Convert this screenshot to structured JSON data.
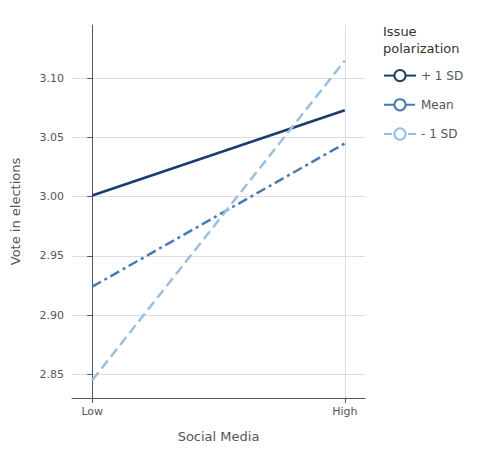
{
  "chart_data": {
    "type": "line",
    "x": [
      0,
      1
    ],
    "xlim": [
      -0.08,
      1.08
    ],
    "xticks": [
      {
        "value": 0,
        "label": "Low"
      },
      {
        "value": 1,
        "label": "High"
      }
    ],
    "ylim": [
      2.83,
      3.145
    ],
    "yticks": [
      2.85,
      {
        "value": 2.9,
        "label": "2.90"
      },
      2.95,
      {
        "value": 3,
        "label": "3.00"
      },
      3.05,
      {
        "value": 3.1,
        "label": "3.10"
      }
    ],
    "xlabel": "Social Media",
    "ylabel": "Vote in elections",
    "legend_title": "Issue\npolarization",
    "legend": "right",
    "grid": true,
    "series": [
      {
        "name": "+ 1 SD",
        "color": "#1b3d6e",
        "line_style": "solid",
        "values": [
          3.001,
          3.073
        ]
      },
      {
        "name": "Mean",
        "color": "#4a78b0",
        "line_style": "dashdot",
        "values": [
          2.924,
          3.045
        ]
      },
      {
        "name": "- 1 SD",
        "color": "#99c0e0",
        "line_style": "dashed",
        "values": [
          2.845,
          3.115
        ]
      }
    ]
  }
}
